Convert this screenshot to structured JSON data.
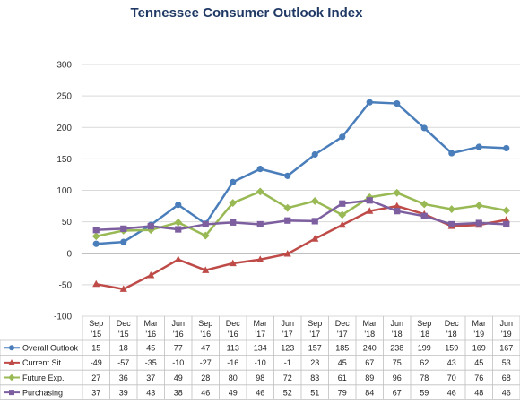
{
  "chart_data": {
    "type": "line",
    "title": "Tennessee Consumer Outlook Index",
    "categories": [
      [
        "Sep",
        "'15"
      ],
      [
        "Dec",
        "'15"
      ],
      [
        "Mar",
        "'16"
      ],
      [
        "Jun",
        "'16"
      ],
      [
        "Sep",
        "'16"
      ],
      [
        "Dec",
        "'16"
      ],
      [
        "Mar",
        "'17"
      ],
      [
        "Jun",
        "'17"
      ],
      [
        "Sep",
        "'17"
      ],
      [
        "Dec",
        "'17"
      ],
      [
        "Mar",
        "'18"
      ],
      [
        "Jun",
        "'18"
      ],
      [
        "Sep",
        "'18"
      ],
      [
        "Dec",
        "'18"
      ],
      [
        "Mar",
        "'19"
      ],
      [
        "Jun",
        "'19"
      ]
    ],
    "ylim": [
      -100,
      300
    ],
    "yticks": [
      -100,
      -50,
      0,
      50,
      100,
      150,
      200,
      250,
      300
    ],
    "grid": true,
    "legend": "data-table",
    "series": [
      {
        "name": "Overall Outlook",
        "color": "#4a7ebb",
        "marker": "circle",
        "values": [
          15,
          18,
          45,
          77,
          47,
          113,
          134,
          123,
          157,
          185,
          240,
          238,
          199,
          159,
          169,
          167
        ]
      },
      {
        "name": "Current Sit.",
        "color": "#be4b48",
        "marker": "triangle",
        "values": [
          -49,
          -57,
          -35,
          -10,
          -27,
          -16,
          -10,
          -1,
          23,
          45,
          67,
          75,
          62,
          43,
          45,
          53
        ]
      },
      {
        "name": "Future Exp.",
        "color": "#98b954",
        "marker": "diamond",
        "values": [
          27,
          36,
          37,
          49,
          28,
          80,
          98,
          72,
          83,
          61,
          89,
          96,
          78,
          70,
          76,
          68
        ]
      },
      {
        "name": "Purchasing",
        "color": "#7d5fa0",
        "marker": "square",
        "values": [
          37,
          39,
          43,
          38,
          46,
          49,
          46,
          52,
          51,
          79,
          84,
          67,
          59,
          46,
          48,
          46
        ]
      }
    ]
  }
}
